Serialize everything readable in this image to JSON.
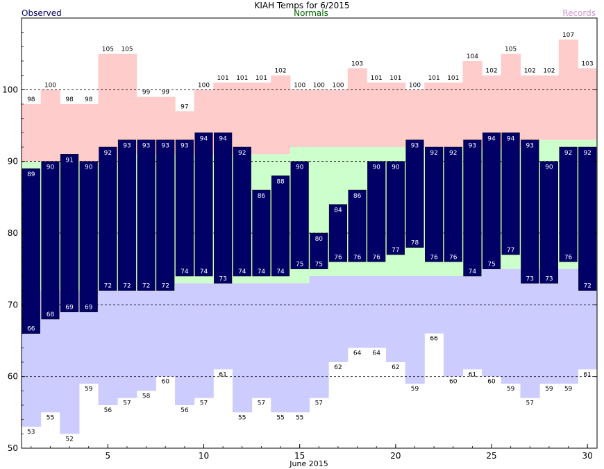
{
  "chart_data": {
    "type": "bar",
    "title": "KIAH Temps for 6/2015",
    "xlabel": "June 2015",
    "legend": {
      "observed": "Observed",
      "normals": "Normals",
      "records": "Records"
    },
    "x": [
      1,
      2,
      3,
      4,
      5,
      6,
      7,
      8,
      9,
      10,
      11,
      12,
      13,
      14,
      15,
      16,
      17,
      18,
      19,
      20,
      21,
      22,
      23,
      24,
      25,
      26,
      27,
      28,
      29,
      30
    ],
    "xticks": [
      5,
      10,
      15,
      20,
      25,
      30
    ],
    "yticks": [
      50,
      60,
      70,
      80,
      90,
      100
    ],
    "ylim": [
      50,
      110
    ],
    "xlim": [
      0.5,
      30.5
    ],
    "gridlines": [
      60,
      70,
      80,
      90,
      100
    ],
    "series": [
      {
        "name": "Records",
        "key": "record_high",
        "values": [
          98,
          100,
          98,
          98,
          105,
          105,
          99,
          99,
          97,
          100,
          101,
          101,
          101,
          102,
          100,
          100,
          100,
          103,
          101,
          101,
          100,
          101,
          101,
          104,
          102,
          105,
          102,
          102,
          107,
          103
        ]
      },
      {
        "name": "Records",
        "key": "record_low",
        "values": [
          53,
          55,
          52,
          59,
          56,
          57,
          58,
          60,
          56,
          57,
          61,
          55,
          57,
          55,
          55,
          57,
          62,
          64,
          64,
          62,
          59,
          66,
          60,
          61,
          60,
          59,
          57,
          59,
          59,
          61
        ]
      },
      {
        "name": "Normals",
        "key": "normal_high",
        "values": [
          90,
          90,
          90,
          90,
          90,
          91,
          91,
          91,
          91,
          91,
          91,
          91,
          91,
          91,
          92,
          92,
          92,
          92,
          92,
          92,
          92,
          92,
          92,
          92,
          92,
          92,
          92,
          93,
          93,
          93
        ]
      },
      {
        "name": "Normals",
        "key": "normal_low",
        "values": [
          72,
          72,
          72,
          72,
          72,
          72,
          72,
          72,
          73,
          73,
          73,
          73,
          73,
          73,
          73,
          74,
          74,
          74,
          74,
          74,
          74,
          74,
          74,
          74,
          75,
          75,
          75,
          75,
          75,
          75
        ]
      },
      {
        "name": "Observed",
        "key": "obs_high",
        "values": [
          89,
          90,
          91,
          90,
          92,
          93,
          93,
          93,
          93,
          94,
          94,
          92,
          86,
          88,
          90,
          80,
          84,
          86,
          90,
          90,
          93,
          92,
          92,
          93,
          94,
          94,
          93,
          90,
          92,
          92
        ]
      },
      {
        "name": "Observed",
        "key": "obs_low",
        "values": [
          66,
          68,
          69,
          69,
          72,
          72,
          72,
          72,
          74,
          74,
          73,
          74,
          74,
          74,
          75,
          75,
          76,
          76,
          76,
          77,
          78,
          76,
          76,
          74,
          75,
          77,
          73,
          73,
          76,
          72
        ]
      }
    ]
  },
  "colors": {
    "observed": "#000066",
    "normals_band": "#ccffcc",
    "records_high_band": "#ffcccc",
    "records_low_band": "#ccccff",
    "normals_text": "#006600",
    "records_text": "#cc99cc",
    "observed_text": "#000066"
  }
}
